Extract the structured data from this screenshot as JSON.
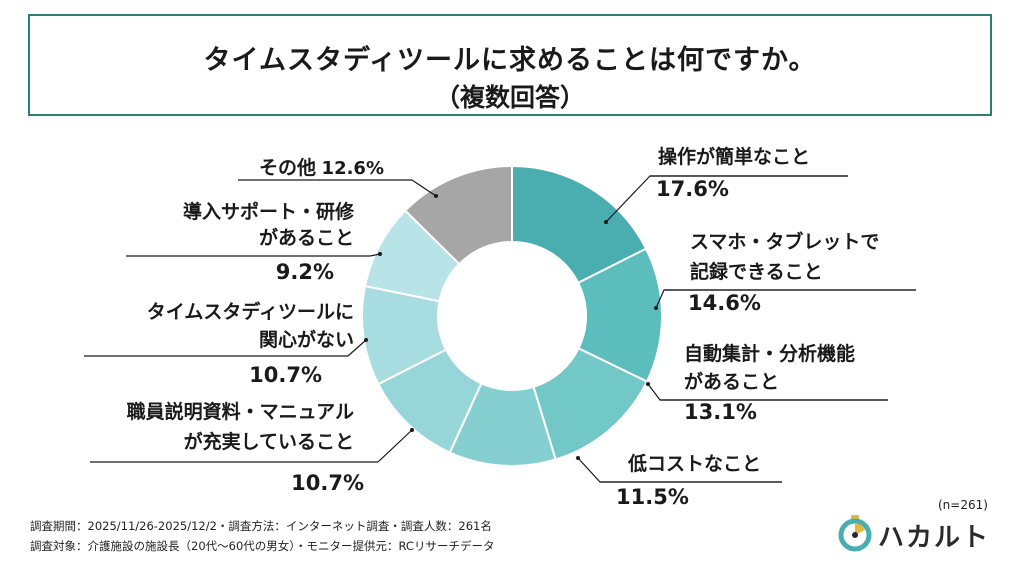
{
  "title": {
    "line1": "タイムスタディツールに求めることは何ですか。",
    "line2": "（複数回答）"
  },
  "chart_data": {
    "type": "pie",
    "variant": "donut",
    "title": "タイムスタディツールに求めることは何ですか。（複数回答）",
    "unit": "%",
    "slices": [
      {
        "label_lines": [
          "操作が簡単なこと"
        ],
        "value": 17.6,
        "value_text": "17.6%",
        "color": "#4aaeb1"
      },
      {
        "label_lines": [
          "スマホ・タブレットで",
          "記録できること"
        ],
        "value": 14.6,
        "value_text": "14.6%",
        "color": "#5cbdbd"
      },
      {
        "label_lines": [
          "自動集計・分析機能",
          "があること"
        ],
        "value": 13.1,
        "value_text": "13.1%",
        "color": "#72c7c7"
      },
      {
        "label_lines": [
          "低コストなこと"
        ],
        "value": 11.5,
        "value_text": "11.5%",
        "color": "#86cfd1"
      },
      {
        "label_lines": [
          "職員説明資料・マニュアル",
          "が充実していること"
        ],
        "value": 10.7,
        "value_text": "10.7%",
        "color": "#97d6d8"
      },
      {
        "label_lines": [
          "タイムスタディツールに",
          "関心がない"
        ],
        "value": 10.7,
        "value_text": "10.7%",
        "color": "#a7dde0"
      },
      {
        "label_lines": [
          "導入サポート・研修",
          "があること"
        ],
        "value": 9.2,
        "value_text": "9.2%",
        "color": "#b8e4e7"
      },
      {
        "label_lines": [
          "その他"
        ],
        "value": 12.6,
        "value_text": "12.6%",
        "color": "#a6a6a6"
      }
    ]
  },
  "sample": "(n=261)",
  "footer": {
    "line1": "調査期間：2025/11/26-2025/12/2・調査方法：インターネット調査・調査人数：261名",
    "line2": "調査対象：介護施設の施設長（20代～60代の男女）・モニター提供元：RCリサーチデータ"
  },
  "logo": {
    "text": "ハカルト",
    "colors": {
      "ring": "#4aaeb1",
      "accent": "#e2b93b"
    }
  }
}
